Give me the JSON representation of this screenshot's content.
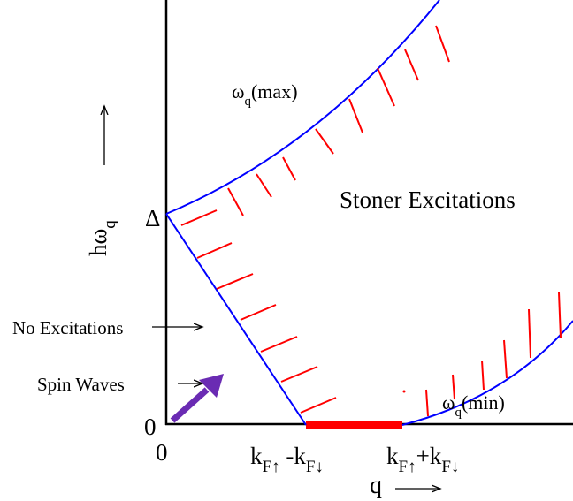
{
  "labels": {
    "y_axis": "hω",
    "y_axis_sub": "q",
    "delta": "Δ",
    "zero_y": "0",
    "zero_x": "0",
    "omega_max": "ω",
    "omega_max_sub": "q",
    "omega_max_suffix": "(max)",
    "omega_min": "ω",
    "omega_min_sub": "q",
    "omega_min_suffix": "(min)",
    "stoner": "Stoner Excitations",
    "no_excitations": "No Excitations",
    "spin_waves": "Spin Waves",
    "q_axis": "q",
    "kf_left_k": "k",
    "kf_left_sub": "F↑",
    "kf_left_mid": " -k",
    "kf_left_sub2": "F↓",
    "kf_right_k": "k",
    "kf_right_sub": "F↑",
    "kf_right_mid": "+k",
    "kf_right_sub2": "F↓"
  },
  "colors": {
    "boundary": "#0000ff",
    "hatch": "#ff0000",
    "axis": "#000000",
    "arrow": "#6a2bb3"
  }
}
